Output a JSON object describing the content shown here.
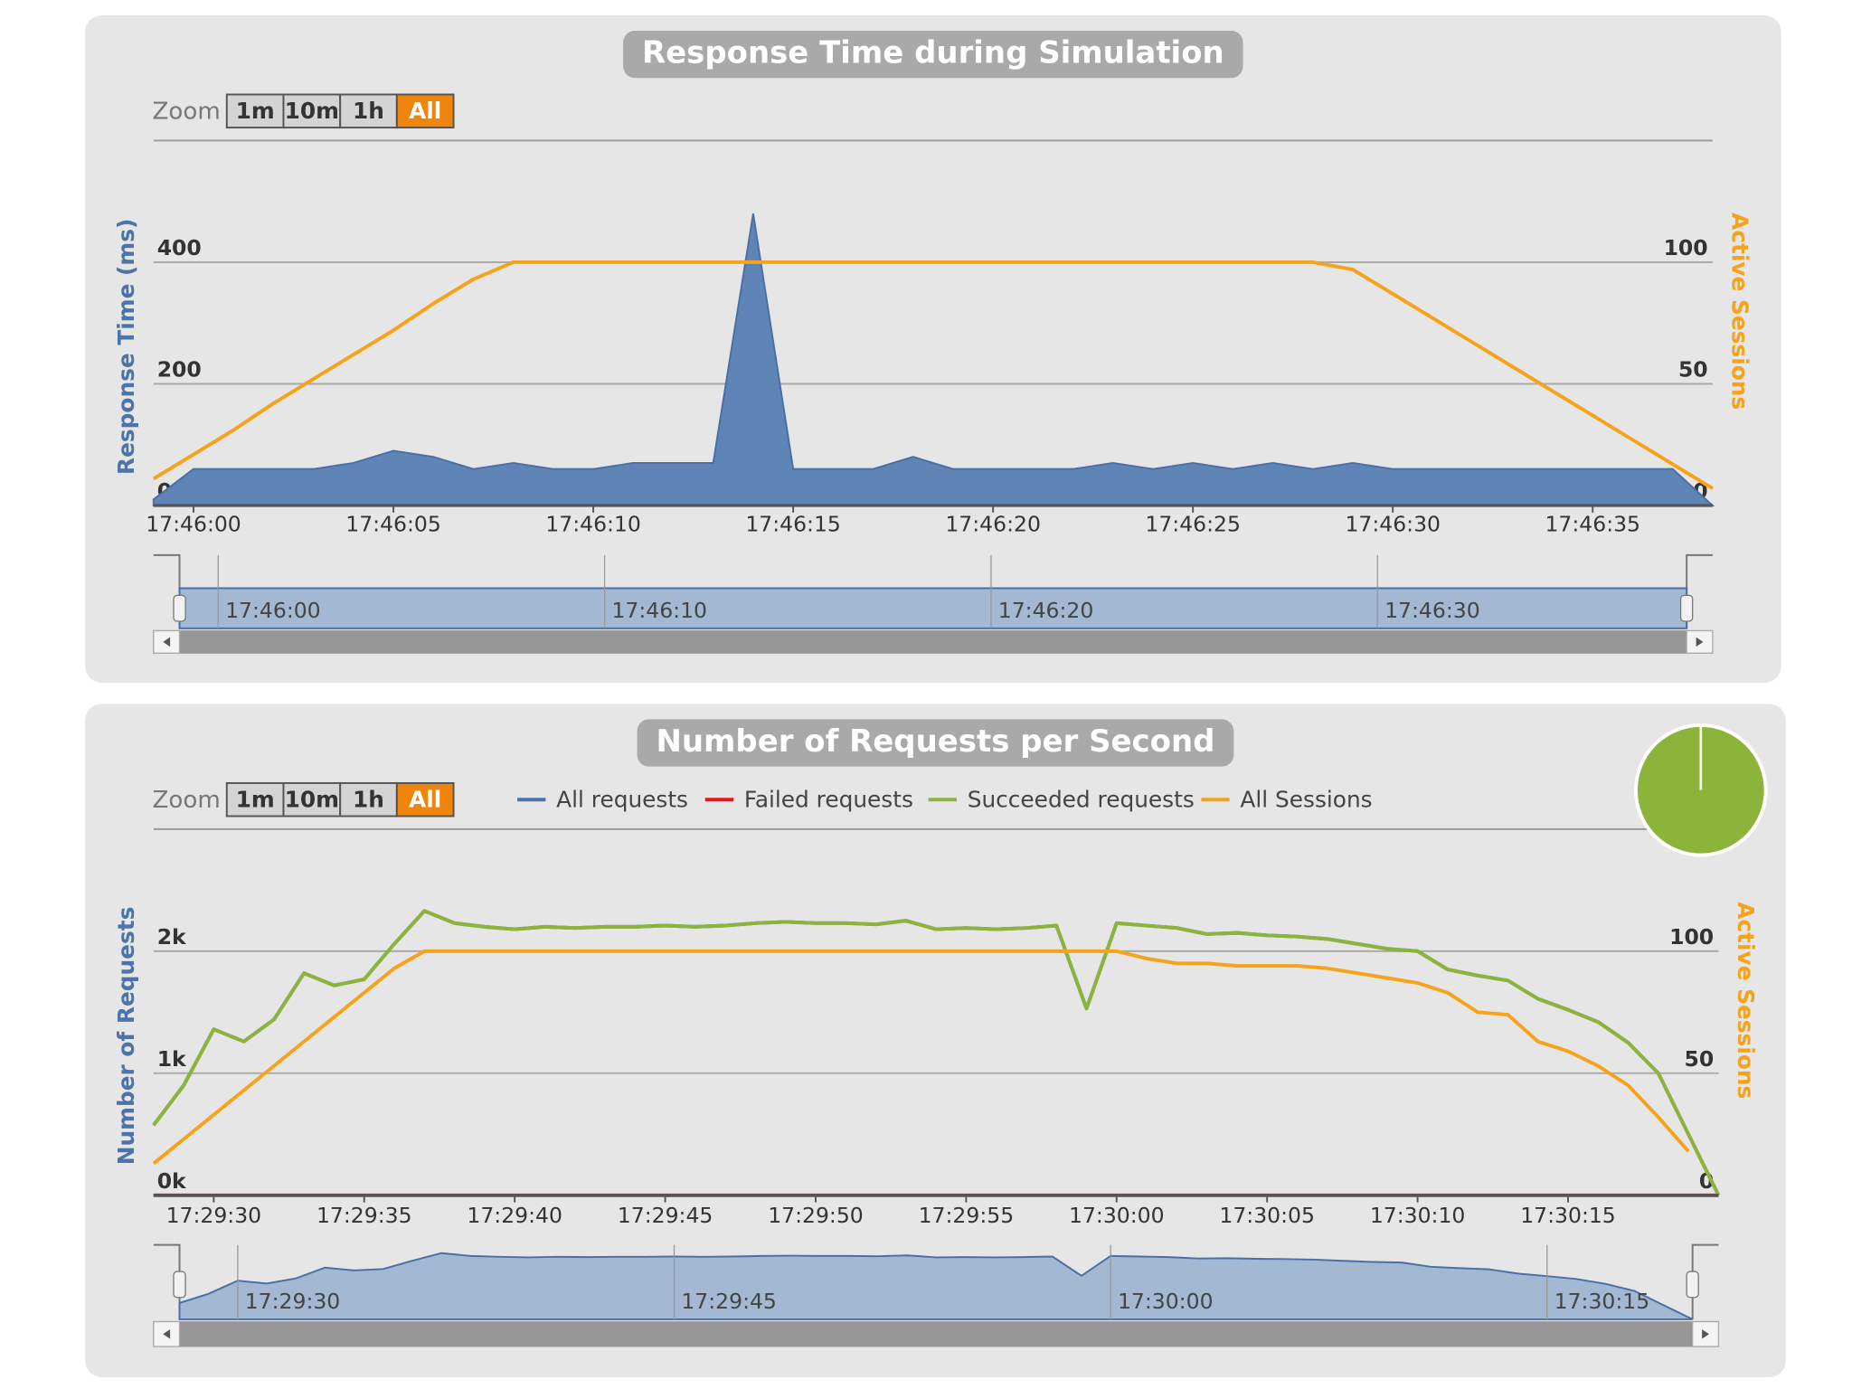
{
  "chart_data": [
    {
      "type": "area",
      "title": "Response Time during Simulation",
      "zoom": {
        "label": "Zoom",
        "buttons": [
          "1m",
          "10m",
          "1h",
          "All"
        ]
      },
      "ylabel": "Response Time (ms)",
      "y2label": "Active Sessions",
      "x": [
        "17:45:59",
        "17:46:00",
        "17:46:01",
        "17:46:02",
        "17:46:03",
        "17:46:04",
        "17:46:05",
        "17:46:06",
        "17:46:07",
        "17:46:08",
        "17:46:09",
        "17:46:10",
        "17:46:11",
        "17:46:12",
        "17:46:13",
        "17:46:14",
        "17:46:15",
        "17:46:16",
        "17:46:17",
        "17:46:18",
        "17:46:19",
        "17:46:20",
        "17:46:21",
        "17:46:22",
        "17:46:23",
        "17:46:24",
        "17:46:25",
        "17:46:26",
        "17:46:27",
        "17:46:28",
        "17:46:29",
        "17:46:30",
        "17:46:31",
        "17:46:32",
        "17:46:33",
        "17:46:34",
        "17:46:35",
        "17:46:36",
        "17:46:37",
        "17:46:38"
      ],
      "series": [
        {
          "color": "#5f84b6",
          "values": [
            10,
            60,
            60,
            60,
            60,
            70,
            90,
            80,
            60,
            70,
            60,
            60,
            70,
            70,
            70,
            480,
            60,
            60,
            60,
            80,
            60,
            60,
            60,
            60,
            70,
            60,
            70,
            60,
            70,
            60,
            70,
            60,
            60,
            60,
            60,
            60,
            60,
            60,
            60,
            0
          ]
        },
        {
          "color": "#f7a21b",
          "axis": "y2",
          "values": [
            11,
            21,
            31,
            42,
            52,
            62,
            72,
            83,
            93,
            100,
            100,
            100,
            100,
            100,
            100,
            100,
            100,
            100,
            100,
            100,
            100,
            100,
            100,
            100,
            100,
            100,
            100,
            100,
            100,
            100,
            97,
            87,
            77,
            67,
            57,
            47,
            37,
            27,
            17,
            7
          ]
        }
      ],
      "xticks": [
        "17:46:00",
        "17:46:05",
        "17:46:10",
        "17:46:15",
        "17:46:20",
        "17:46:25",
        "17:46:30",
        "17:46:35"
      ],
      "ylim": [
        0,
        600
      ],
      "yticks": [
        0,
        200,
        400
      ],
      "y2lim": [
        0,
        150
      ],
      "y2ticks": [
        0,
        50,
        100
      ],
      "grid": true,
      "navigator_xticks": [
        "17:46:00",
        "17:46:10",
        "17:46:20",
        "17:46:30"
      ]
    },
    {
      "type": "line",
      "title": "Number of Requests per Second",
      "zoom": {
        "label": "Zoom",
        "buttons": [
          "1m",
          "10m",
          "1h",
          "All"
        ]
      },
      "ylabel": "Number of Requests",
      "y2label": "Active Sessions",
      "x": [
        "17:29:28",
        "17:29:29",
        "17:29:30",
        "17:29:31",
        "17:29:32",
        "17:29:33",
        "17:29:34",
        "17:29:35",
        "17:29:36",
        "17:29:37",
        "17:29:38",
        "17:29:39",
        "17:29:40",
        "17:29:41",
        "17:29:42",
        "17:29:43",
        "17:29:44",
        "17:29:45",
        "17:29:46",
        "17:29:47",
        "17:29:48",
        "17:29:49",
        "17:29:50",
        "17:29:51",
        "17:29:52",
        "17:29:53",
        "17:29:54",
        "17:29:55",
        "17:29:56",
        "17:29:57",
        "17:29:58",
        "17:29:59",
        "17:30:00",
        "17:30:01",
        "17:30:02",
        "17:30:03",
        "17:30:04",
        "17:30:05",
        "17:30:06",
        "17:30:07",
        "17:30:08",
        "17:30:09",
        "17:30:10",
        "17:30:11",
        "17:30:12",
        "17:30:13",
        "17:30:14",
        "17:30:15",
        "17:30:16",
        "17:30:17",
        "17:30:18",
        "17:30:19",
        "17:30:20"
      ],
      "series": [
        {
          "name": "All requests",
          "color": "#4d74aa",
          "values": [
            574,
            900,
            1360,
            1260,
            1440,
            1820,
            1720,
            1770,
            2060,
            2330,
            2230,
            2200,
            2180,
            2200,
            2190,
            2200,
            2200,
            2210,
            2200,
            2210,
            2230,
            2240,
            2230,
            2230,
            2220,
            2250,
            2180,
            2190,
            2180,
            2190,
            2210,
            1530,
            2230,
            2210,
            2190,
            2140,
            2150,
            2130,
            2120,
            2100,
            2060,
            2020,
            2000,
            1850,
            1800,
            1760,
            1610,
            1520,
            1420,
            1250,
            1000,
            500,
            0
          ]
        },
        {
          "name": "Failed requests",
          "color": "#e8151b",
          "values": [
            0,
            0,
            0,
            0,
            0,
            0,
            0,
            0,
            0,
            0,
            0,
            0,
            0,
            0,
            0,
            0,
            0,
            0,
            0,
            0,
            0,
            0,
            0,
            0,
            0,
            0,
            0,
            0,
            0,
            0,
            0,
            0,
            0,
            0,
            0,
            0,
            0,
            0,
            0,
            0,
            0,
            0,
            0,
            0,
            0,
            0,
            0,
            0,
            0,
            0,
            0,
            0,
            0
          ]
        },
        {
          "name": "Succeeded requests",
          "color": "#8db43a",
          "values": [
            574,
            900,
            1360,
            1260,
            1440,
            1820,
            1720,
            1770,
            2060,
            2330,
            2230,
            2200,
            2180,
            2200,
            2190,
            2200,
            2200,
            2210,
            2200,
            2210,
            2230,
            2240,
            2230,
            2230,
            2220,
            2250,
            2180,
            2190,
            2180,
            2190,
            2210,
            1530,
            2230,
            2210,
            2190,
            2140,
            2150,
            2130,
            2120,
            2100,
            2060,
            2020,
            2000,
            1850,
            1800,
            1760,
            1610,
            1520,
            1420,
            1250,
            1000,
            500,
            0
          ]
        },
        {
          "name": "All Sessions",
          "color": "#f7a21b",
          "axis": "y2",
          "values": [
            13,
            23,
            33,
            43,
            53,
            63,
            73,
            83,
            93,
            100,
            100,
            100,
            100,
            100,
            100,
            100,
            100,
            100,
            100,
            100,
            100,
            100,
            100,
            100,
            100,
            100,
            100,
            100,
            100,
            100,
            100,
            100,
            100,
            97,
            95,
            95,
            94,
            94,
            94,
            93,
            91,
            89,
            87,
            83,
            75,
            74,
            63,
            59,
            53,
            45,
            32,
            18,
            null
          ]
        }
      ],
      "xticks": [
        "17:29:30",
        "17:29:35",
        "17:29:40",
        "17:29:45",
        "17:29:50",
        "17:29:55",
        "17:30:00",
        "17:30:05",
        "17:30:10",
        "17:30:15"
      ],
      "ylim": [
        0,
        3000
      ],
      "yticks": [
        {
          "value": 0,
          "label": "0k"
        },
        {
          "value": 1000,
          "label": "1k"
        },
        {
          "value": 2000,
          "label": "2k"
        }
      ],
      "y2lim": [
        0,
        150
      ],
      "y2ticks": [
        0,
        50,
        100
      ],
      "grid": true,
      "navigator_xticks": [
        "17:29:30",
        "17:29:45",
        "17:30:00",
        "17:30:15"
      ]
    }
  ]
}
